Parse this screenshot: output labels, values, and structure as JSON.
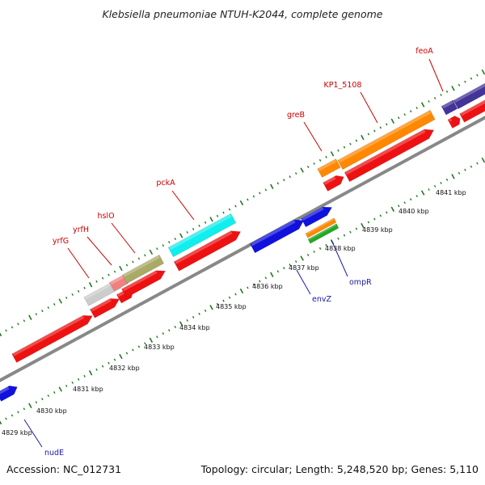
{
  "title": "Klebsiella pneumoniae NTUH-K2044, complete genome",
  "footer": {
    "accession": "Accession: NC_012731",
    "summary": "Topology: circular; Length: 5,248,520 bp; Genes: 5,110"
  },
  "colors": {
    "red_gene": "#ee1111",
    "blue_gene": "#1111dd",
    "cyan_gene": "#11eeee",
    "orange_gene": "#ff8800",
    "olive_gene": "#aaaa66",
    "gray_gene": "#cccccc",
    "purple_gene": "#443399",
    "green_gene": "#22aa22",
    "label_red": "#cc0000",
    "label_blue": "#1a1aaa",
    "tick_green": "#227722",
    "backbone": "#888888"
  },
  "gene_labels_top": [
    {
      "name": "feoA"
    },
    {
      "name": "KP1_5108"
    },
    {
      "name": "greB"
    },
    {
      "name": "pckA"
    },
    {
      "name": "hslO"
    },
    {
      "name": "yrfH"
    },
    {
      "name": "yrfG"
    }
  ],
  "gene_labels_bottom": [
    {
      "name": "ompR"
    },
    {
      "name": "envZ"
    },
    {
      "name": "nudE"
    }
  ],
  "kbp_labels": [
    "4829 kbp",
    "4830 kbp",
    "4831 kbp",
    "4832 kbp",
    "4833 kbp",
    "4834 kbp",
    "4835 kbp",
    "4836 kbp",
    "4837 kbp",
    "4838 kbp",
    "4839 kbp",
    "4840 kbp",
    "4841 kbp"
  ]
}
